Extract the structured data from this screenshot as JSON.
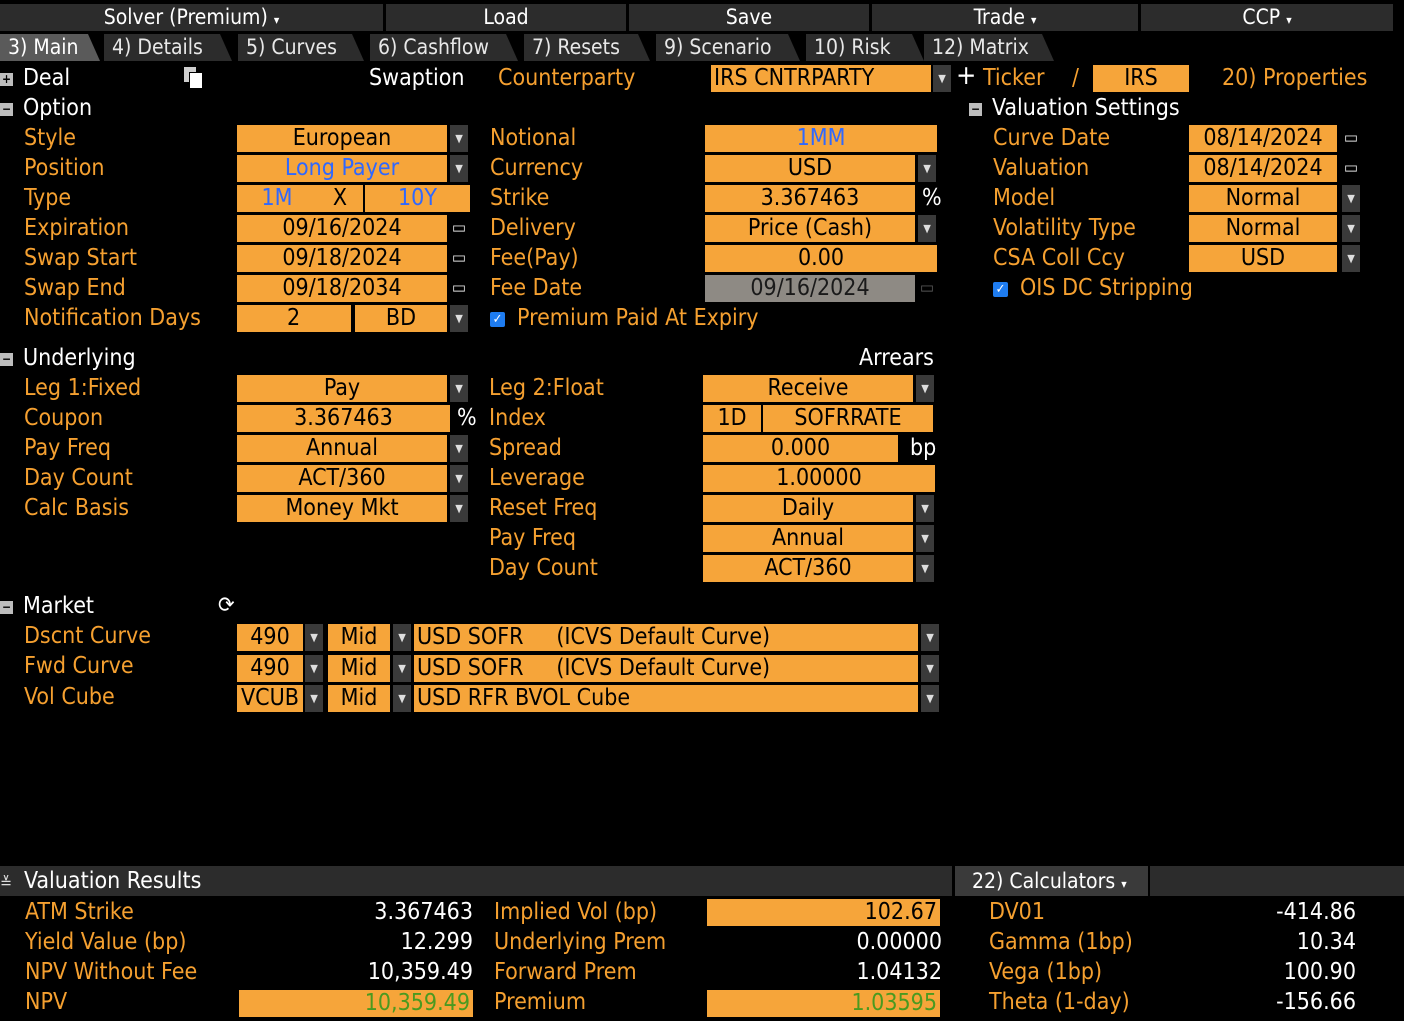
{
  "menu": {
    "solver": "Solver (Premium)",
    "load": "Load",
    "save": "Save",
    "trade": "Trade",
    "ccp": "CCP"
  },
  "tabs": [
    "3) Main",
    "4) Details",
    "5) Curves",
    "6) Cashflow",
    "7) Resets",
    "9) Scenario",
    "10) Risk",
    "12) Matrix"
  ],
  "deal": {
    "section": "Deal",
    "type_label": "Swaption",
    "counterparty_label": "Counterparty",
    "counterparty": "IRS CNTRPARTY",
    "ticker_label": "Ticker",
    "slash": "/",
    "ticker": "IRS",
    "properties": "20) Properties"
  },
  "option": {
    "section": "Option",
    "style_label": "Style",
    "style": "European",
    "position_label": "Position",
    "position": "Long Payer",
    "type_label": "Type",
    "type_expiry": "1M",
    "type_x": "X",
    "type_tenor": "10Y",
    "expiration_label": "Expiration",
    "expiration": "09/16/2024",
    "swap_start_label": "Swap Start",
    "swap_start": "09/18/2024",
    "swap_end_label": "Swap End",
    "swap_end": "09/18/2034",
    "notif_label": "Notification Days",
    "notif_days": "2",
    "notif_unit": "BD",
    "notional_label": "Notional",
    "notional": "1MM",
    "currency_label": "Currency",
    "currency": "USD",
    "strike_label": "Strike",
    "strike": "3.367463",
    "strike_unit": "%",
    "delivery_label": "Delivery",
    "delivery": "Price (Cash)",
    "fee_label": "Fee(Pay)",
    "fee": "0.00",
    "fee_date_label": "Fee Date",
    "fee_date": "09/16/2024",
    "premium_expiry": "Premium Paid At Expiry"
  },
  "valuation_settings": {
    "section": "Valuation Settings",
    "curve_date_label": "Curve Date",
    "curve_date": "08/14/2024",
    "valuation_label": "Valuation",
    "valuation": "08/14/2024",
    "model_label": "Model",
    "model": "Normal",
    "vol_type_label": "Volatility Type",
    "vol_type": "Normal",
    "csa_label": "CSA Coll Ccy",
    "csa": "USD",
    "ois": "OIS DC Stripping"
  },
  "underlying": {
    "section": "Underlying",
    "arrears": "Arrears",
    "leg1_label": "Leg 1:Fixed",
    "leg1": "Pay",
    "coupon_label": "Coupon",
    "coupon": "3.367463",
    "coupon_unit": "%",
    "pay_freq_label": "Pay Freq",
    "pay_freq": "Annual",
    "day_count_label": "Day Count",
    "day_count": "ACT/360",
    "calc_basis_label": "Calc Basis",
    "calc_basis": "Money Mkt",
    "leg2_label": "Leg 2:Float",
    "leg2": "Receive",
    "index_label": "Index",
    "index_tenor": "1D",
    "index": "SOFRRATE",
    "spread_label": "Spread",
    "spread": "0.000",
    "spread_unit": "bp",
    "leverage_label": "Leverage",
    "leverage": "1.00000",
    "reset_freq_label": "Reset Freq",
    "reset_freq": "Daily",
    "pay_freq2_label": "Pay Freq",
    "pay_freq2": "Annual",
    "day_count2_label": "Day Count",
    "day_count2": "ACT/360"
  },
  "market": {
    "section": "Market",
    "rows": [
      {
        "label": "Dscnt Curve",
        "id": "490",
        "side": "Mid",
        "curve": "USD SOFR     (ICVS Default Curve)"
      },
      {
        "label": "Fwd Curve",
        "id": "490",
        "side": "Mid",
        "curve": "USD SOFR     (ICVS Default Curve)"
      },
      {
        "label": "Vol Cube",
        "id": "VCUB",
        "side": "Mid",
        "curve": "USD RFR BVOL Cube"
      }
    ]
  },
  "results": {
    "section": "Valuation Results",
    "calculators": "22) Calculators",
    "atm_strike_label": "ATM Strike",
    "atm_strike": "3.367463",
    "yield_label": "Yield Value (bp)",
    "yield": "12.299",
    "npv_nofee_label": "NPV Without Fee",
    "npv_nofee": "10,359.49",
    "npv_label": "NPV",
    "npv": "10,359.49",
    "implied_vol_label": "Implied Vol (bp)",
    "implied_vol": "102.67",
    "underlying_prem_label": "Underlying Prem",
    "underlying_prem": "0.00000",
    "forward_prem_label": "Forward Prem",
    "forward_prem": "1.04132",
    "premium_label": "Premium",
    "premium": "1.03595",
    "dv01_label": "DV01",
    "dv01": "-414.86",
    "gamma_label": "Gamma (1bp)",
    "gamma": "10.34",
    "vega_label": "Vega (1bp)",
    "vega": "100.90",
    "theta_label": "Theta (1-day)",
    "theta": "-156.66"
  }
}
